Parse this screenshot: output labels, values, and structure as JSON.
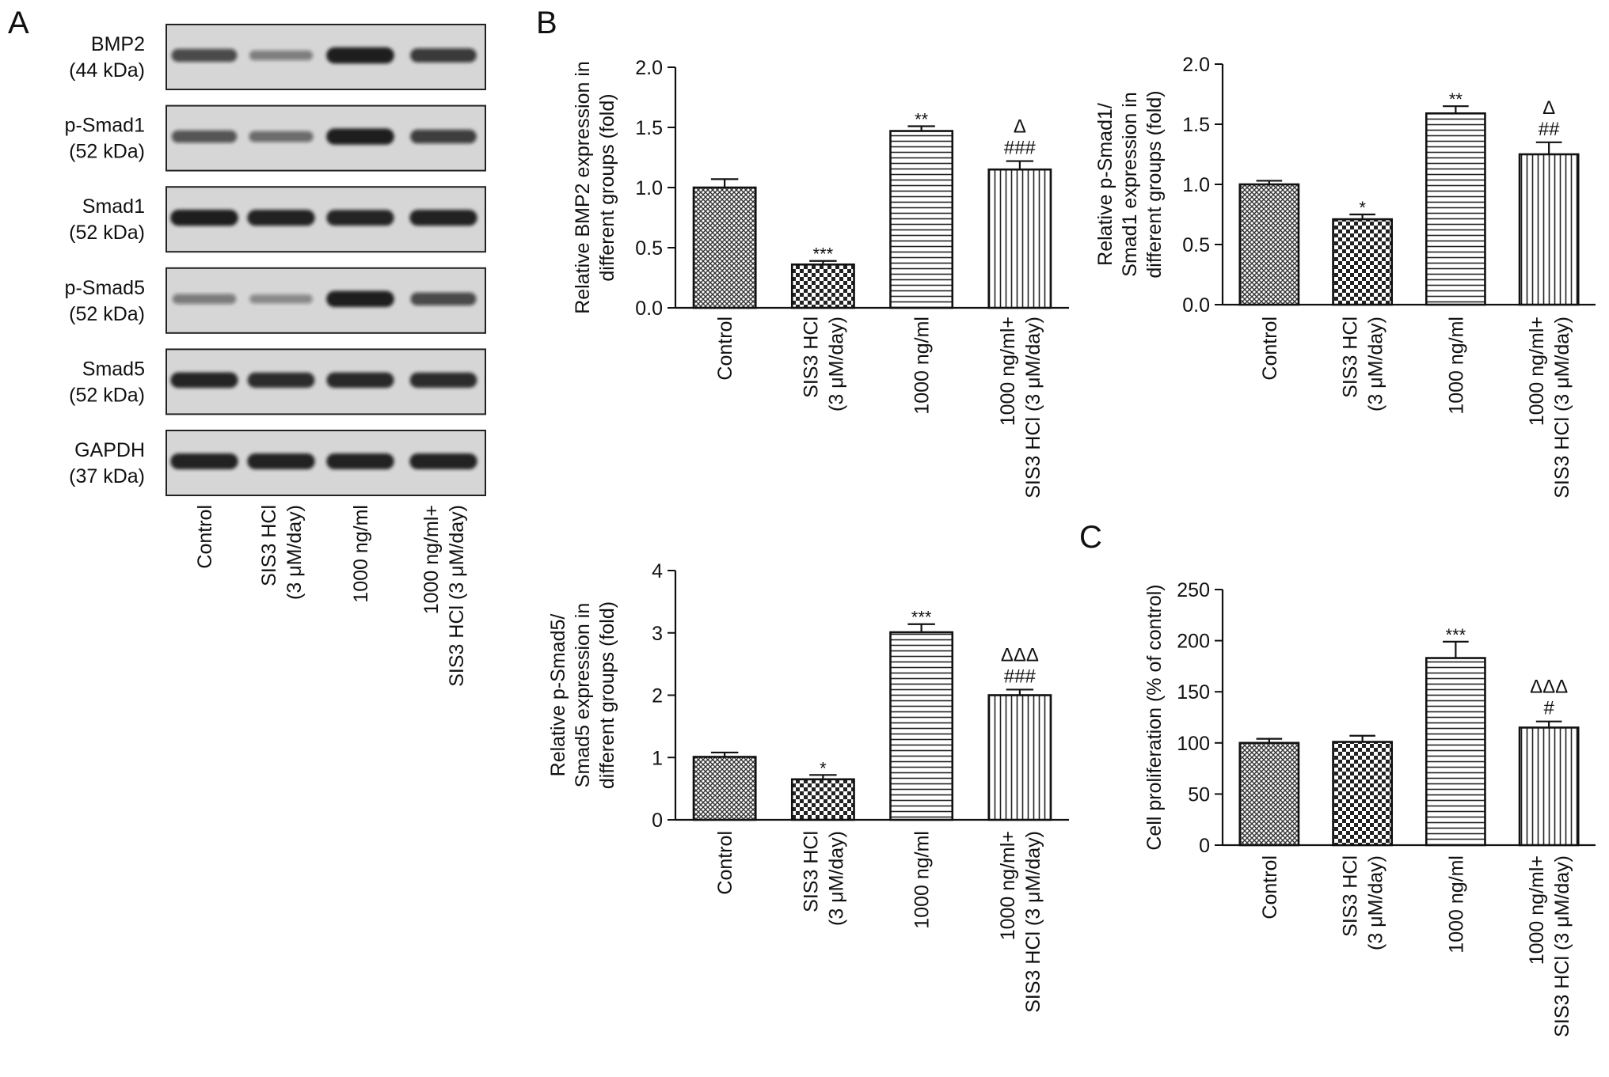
{
  "panels": {
    "A": "A",
    "B": "B",
    "C": "C"
  },
  "groups": [
    [
      "Control"
    ],
    [
      "SIS3 HCl",
      "(3 μM/day)"
    ],
    [
      "1000 ng/ml"
    ],
    [
      "1000 ng/ml+",
      "SIS3 HCl (3 μM/day)"
    ]
  ],
  "western_blot": {
    "rows": [
      {
        "protein": "BMP2",
        "kda": "(44 kDa)",
        "intensity": [
          0.62,
          0.28,
          0.95,
          0.72
        ]
      },
      {
        "protein": "p-Smad1",
        "kda": "(52 kDa)",
        "intensity": [
          0.55,
          0.4,
          0.95,
          0.7
        ]
      },
      {
        "protein": "Smad1",
        "kda": "(52 kDa)",
        "intensity": [
          0.95,
          0.92,
          0.9,
          0.92
        ]
      },
      {
        "protein": "p-Smad5",
        "kda": "(52 kDa)",
        "intensity": [
          0.3,
          0.2,
          0.95,
          0.62
        ]
      },
      {
        "protein": "Smad5",
        "kda": "(52 kDa)",
        "intensity": [
          0.9,
          0.85,
          0.88,
          0.85
        ]
      },
      {
        "protein": "GAPDH",
        "kda": "(37 kDa)",
        "intensity": [
          0.92,
          0.92,
          0.92,
          0.92
        ]
      }
    ]
  },
  "colors": {
    "bar_fill": "#ffffff",
    "bar_stroke": "#111111",
    "pattern_ink": "#222222",
    "blot_bg": "#d6d6d6",
    "band": "#141414"
  },
  "chart_data": [
    {
      "id": "bmp2",
      "type": "bar",
      "panel": "B",
      "ylabel": [
        "Relative BMP2 expression in",
        "different groups (fold)"
      ],
      "ylim": [
        0,
        2.0
      ],
      "yticks": [
        "0.0",
        "0.5",
        "1.0",
        "1.5",
        "2.0"
      ],
      "values": [
        1.0,
        0.36,
        1.47,
        1.15
      ],
      "errors": [
        0.07,
        0.03,
        0.04,
        0.07
      ],
      "annotations": [
        [
          ""
        ],
        [
          "***"
        ],
        [
          "**"
        ],
        [
          "Δ",
          "###"
        ]
      ]
    },
    {
      "id": "psmad1",
      "type": "bar",
      "ylabel": [
        "Relative p-Smad1/",
        "Smad1 expression in",
        "different groups (fold)"
      ],
      "ylim": [
        0,
        2.0
      ],
      "yticks": [
        "0.0",
        "0.5",
        "1.0",
        "1.5",
        "2.0"
      ],
      "values": [
        1.0,
        0.71,
        1.59,
        1.25
      ],
      "errors": [
        0.03,
        0.04,
        0.06,
        0.1
      ],
      "annotations": [
        [
          ""
        ],
        [
          "*"
        ],
        [
          "**"
        ],
        [
          "Δ",
          "##"
        ]
      ]
    },
    {
      "id": "psmad5",
      "type": "bar",
      "ylabel": [
        "Relative p-Smad5/",
        "Smad5 expression in",
        "different groups (fold)"
      ],
      "ylim": [
        0,
        4
      ],
      "yticks": [
        "0",
        "1",
        "2",
        "3",
        "4"
      ],
      "values": [
        1.01,
        0.65,
        3.01,
        2.0
      ],
      "errors": [
        0.07,
        0.07,
        0.13,
        0.09
      ],
      "annotations": [
        [
          ""
        ],
        [
          "*"
        ],
        [
          "***"
        ],
        [
          "ΔΔΔ",
          "###"
        ]
      ]
    },
    {
      "id": "prolif",
      "type": "bar",
      "panel": "C",
      "ylabel": [
        "Cell proliferation (% of control)"
      ],
      "ylim": [
        0,
        250
      ],
      "yticks": [
        "0",
        "50",
        "100",
        "150",
        "200",
        "250"
      ],
      "values": [
        100,
        101,
        183,
        115
      ],
      "errors": [
        4,
        6,
        16,
        6
      ],
      "annotations": [
        [
          ""
        ],
        [
          ""
        ],
        [
          "***"
        ],
        [
          "ΔΔΔ",
          "#"
        ]
      ]
    }
  ]
}
